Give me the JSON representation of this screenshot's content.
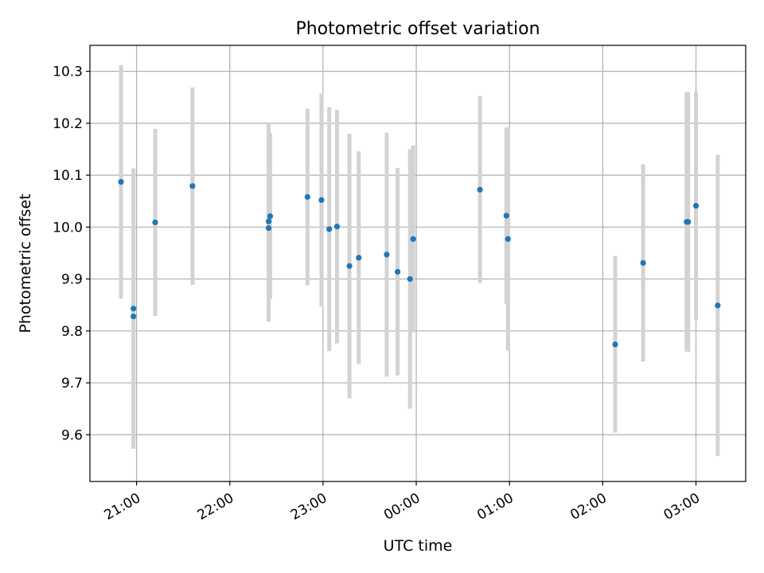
{
  "chart_data": {
    "type": "scatter",
    "title": "Photometric offset variation",
    "xlabel": "UTC time",
    "ylabel": "Photometric offset",
    "x_ticks": [
      "21:00",
      "22:00",
      "23:00",
      "00:00",
      "01:00",
      "02:00",
      "03:00"
    ],
    "x_tick_hours": [
      21,
      22,
      23,
      24,
      25,
      26,
      27
    ],
    "y_ticks": [
      "9.6",
      "9.7",
      "9.8",
      "9.9",
      "10.0",
      "10.1",
      "10.2",
      "10.3"
    ],
    "y_tick_values": [
      9.6,
      9.7,
      9.8,
      9.9,
      10.0,
      10.1,
      10.2,
      10.3
    ],
    "xlim": [
      "20:30",
      "03:32"
    ],
    "ylim": [
      9.51,
      10.35
    ],
    "grid": true,
    "marker_color": "#1f77b4",
    "errorbar_color": "#d3d3d3",
    "points": [
      {
        "x": "20:50",
        "y": 10.087,
        "err": 0.225
      },
      {
        "x": "20:58",
        "y": 9.843,
        "err": 0.27
      },
      {
        "x": "20:58",
        "y": 9.828,
        "err": 0.25
      },
      {
        "x": "21:12",
        "y": 10.009,
        "err": 0.18
      },
      {
        "x": "21:36",
        "y": 10.079,
        "err": 0.19
      },
      {
        "x": "22:25",
        "y": 10.011,
        "err": 0.19
      },
      {
        "x": "22:25",
        "y": 9.998,
        "err": 0.18
      },
      {
        "x": "22:26",
        "y": 10.021,
        "err": 0.16
      },
      {
        "x": "22:50",
        "y": 10.058,
        "err": 0.17
      },
      {
        "x": "22:59",
        "y": 10.052,
        "err": 0.205
      },
      {
        "x": "23:04",
        "y": 9.996,
        "err": 0.235
      },
      {
        "x": "23:09",
        "y": 10.001,
        "err": 0.225
      },
      {
        "x": "23:17",
        "y": 9.925,
        "err": 0.255
      },
      {
        "x": "23:23",
        "y": 9.941,
        "err": 0.205
      },
      {
        "x": "23:41",
        "y": 9.947,
        "err": 0.235
      },
      {
        "x": "23:48",
        "y": 9.914,
        "err": 0.2
      },
      {
        "x": "23:56",
        "y": 9.9,
        "err": 0.25
      },
      {
        "x": "23:58",
        "y": 9.977,
        "err": 0.18
      },
      {
        "x": "00:41",
        "y": 10.072,
        "err": 0.18
      },
      {
        "x": "00:58",
        "y": 10.022,
        "err": 0.17
      },
      {
        "x": "00:59",
        "y": 9.977,
        "err": 0.215
      },
      {
        "x": "02:08",
        "y": 9.774,
        "err": 0.17
      },
      {
        "x": "02:26",
        "y": 9.931,
        "err": 0.19
      },
      {
        "x": "02:54",
        "y": 10.01,
        "err": 0.25
      },
      {
        "x": "02:55",
        "y": 10.01,
        "err": 0.25
      },
      {
        "x": "03:00",
        "y": 10.041,
        "err": 0.22
      },
      {
        "x": "03:14",
        "y": 9.849,
        "err": 0.29
      }
    ]
  }
}
